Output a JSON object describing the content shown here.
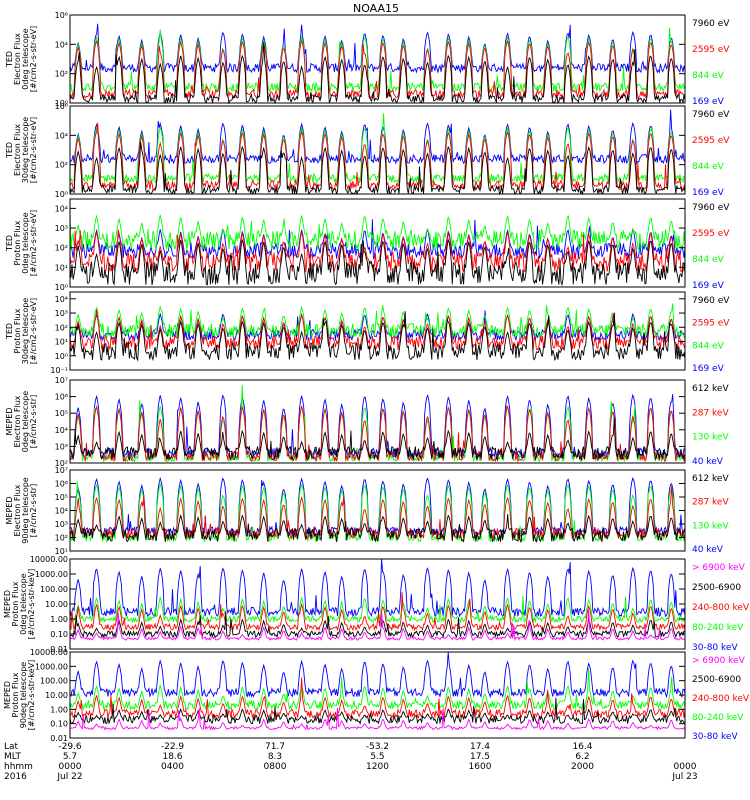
{
  "title": "NOAA15",
  "colors": {
    "blue": "#0000ff",
    "red": "#ff0000",
    "green": "#00ff00",
    "black": "#000000",
    "magenta": "#ff00ff"
  },
  "chart_data": [
    {
      "type": "line",
      "panel": 1,
      "ylabel": [
        "TED",
        "Electron Flux",
        "0deg telescope",
        "[#/cm2-s-str-eV]"
      ],
      "log": true,
      "ylim": [
        1,
        1000000
      ],
      "yticks": [
        {
          "v": 1,
          "label": "10⁰"
        },
        {
          "v": 100,
          "label": "10²"
        },
        {
          "v": 10000,
          "label": "10⁴"
        },
        {
          "v": 1000000,
          "label": "10⁶"
        }
      ],
      "legend": [
        {
          "text": "7960 eV",
          "color": "#000000"
        },
        {
          "text": "2595 eV",
          "color": "#ff0000"
        },
        {
          "text": "844 eV",
          "color": "#00ff00"
        },
        {
          "text": "169 eV",
          "color": "#0000ff"
        }
      ],
      "series": [
        {
          "name": "169 eV",
          "color": "#0000ff",
          "baseline": 250,
          "spread": 0.3,
          "peaks": 80000
        },
        {
          "name": "844 eV",
          "color": "#00ff00",
          "baseline": 12,
          "spread": 0.3,
          "peaks": 40000
        },
        {
          "name": "2595 eV",
          "color": "#ff0000",
          "baseline": 4,
          "spread": 0.3,
          "peaks": 20000
        },
        {
          "name": "7960 eV",
          "color": "#000000",
          "baseline": 2,
          "spread": 0.3,
          "peaks": 2000
        }
      ]
    },
    {
      "type": "line",
      "panel": 2,
      "ylabel": [
        "TED",
        "Electron Flux",
        "30deg telescope",
        "[#/cm2-s-str-eV]"
      ],
      "log": true,
      "ylim": [
        1,
        1000000
      ],
      "yticks": [
        {
          "v": 1,
          "label": "10⁰"
        },
        {
          "v": 100,
          "label": "10²"
        },
        {
          "v": 10000,
          "label": "10⁴"
        },
        {
          "v": 1000000,
          "label": "10⁶"
        }
      ],
      "legend": [
        {
          "text": "7960 eV",
          "color": "#000000"
        },
        {
          "text": "2595 eV",
          "color": "#ff0000"
        },
        {
          "text": "844 eV",
          "color": "#00ff00"
        },
        {
          "text": "169 eV",
          "color": "#0000ff"
        }
      ],
      "series": [
        {
          "name": "169 eV",
          "color": "#0000ff",
          "baseline": 250,
          "spread": 0.3,
          "peaks": 80000
        },
        {
          "name": "844 eV",
          "color": "#00ff00",
          "baseline": 12,
          "spread": 0.3,
          "peaks": 40000
        },
        {
          "name": "2595 eV",
          "color": "#ff0000",
          "baseline": 4,
          "spread": 0.3,
          "peaks": 20000
        },
        {
          "name": "7960 eV",
          "color": "#000000",
          "baseline": 2,
          "spread": 0.3,
          "peaks": 2000
        }
      ]
    },
    {
      "type": "line",
      "panel": 3,
      "ylabel": [
        "TED",
        "Proton Flux",
        "0deg telescope",
        "[#/cm2-s-str-eV]"
      ],
      "log": true,
      "ylim": [
        1,
        30000
      ],
      "yticks": [
        {
          "v": 1,
          "label": "10⁰"
        },
        {
          "v": 10,
          "label": "10¹"
        },
        {
          "v": 100,
          "label": "10²"
        },
        {
          "v": 1000,
          "label": "10³"
        },
        {
          "v": 10000,
          "label": "10⁴"
        }
      ],
      "legend": [
        {
          "text": "7960 eV",
          "color": "#000000"
        },
        {
          "text": "2595 eV",
          "color": "#ff0000"
        },
        {
          "text": "844 eV",
          "color": "#00ff00"
        },
        {
          "text": "169 eV",
          "color": "#0000ff"
        }
      ],
      "series": [
        {
          "name": "169 eV",
          "color": "#0000ff",
          "baseline": 70,
          "spread": 0.4,
          "peaks": 1000
        },
        {
          "name": "844 eV",
          "color": "#00ff00",
          "baseline": 250,
          "spread": 0.5,
          "peaks": 5000
        },
        {
          "name": "2595 eV",
          "color": "#ff0000",
          "baseline": 18,
          "spread": 0.5,
          "peaks": 700
        },
        {
          "name": "7960 eV",
          "color": "#000000",
          "baseline": 5,
          "spread": 0.6,
          "peaks": 300
        }
      ]
    },
    {
      "type": "line",
      "panel": 4,
      "ylabel": [
        "TED",
        "Proton Flux",
        "30deg telescope",
        "[#/cm2-s-str-eV]"
      ],
      "log": true,
      "ylim": [
        0.1,
        30000
      ],
      "yticks": [
        {
          "v": 0.1,
          "label": "10⁻¹"
        },
        {
          "v": 1,
          "label": "10⁰"
        },
        {
          "v": 10,
          "label": "10¹"
        },
        {
          "v": 100,
          "label": "10²"
        },
        {
          "v": 1000,
          "label": "10³"
        },
        {
          "v": 10000,
          "label": "10⁴"
        }
      ],
      "legend": [
        {
          "text": "7960 eV",
          "color": "#000000"
        },
        {
          "text": "2595 eV",
          "color": "#ff0000"
        },
        {
          "text": "844 eV",
          "color": "#00ff00"
        },
        {
          "text": "169 eV",
          "color": "#0000ff"
        }
      ],
      "series": [
        {
          "name": "169 eV",
          "color": "#0000ff",
          "baseline": 30,
          "spread": 0.4,
          "peaks": 1000
        },
        {
          "name": "844 eV",
          "color": "#00ff00",
          "baseline": 60,
          "spread": 0.5,
          "peaks": 3000
        },
        {
          "name": "2595 eV",
          "color": "#ff0000",
          "baseline": 8,
          "spread": 0.5,
          "peaks": 800
        },
        {
          "name": "7960 eV",
          "color": "#000000",
          "baseline": 2,
          "spread": 0.6,
          "peaks": 300
        }
      ]
    },
    {
      "type": "line",
      "panel": 5,
      "ylabel": [
        "MEPED",
        "Electron Flux",
        "0deg telescope",
        "[#/cm2-s-str]"
      ],
      "log": true,
      "ylim": [
        100,
        10000000
      ],
      "yticks": [
        {
          "v": 100,
          "label": "10²"
        },
        {
          "v": 1000,
          "label": "10³"
        },
        {
          "v": 10000,
          "label": "10⁴"
        },
        {
          "v": 100000,
          "label": "10⁵"
        },
        {
          "v": 1000000,
          "label": "10⁶"
        },
        {
          "v": 10000000,
          "label": "10⁷"
        }
      ],
      "legend": [
        {
          "text": "612 keV",
          "color": "#000000"
        },
        {
          "text": "287 keV",
          "color": "#ff0000"
        },
        {
          "text": "130 keV",
          "color": "#00ff00"
        },
        {
          "text": "40 keV",
          "color": "#0000ff"
        }
      ],
      "series": [
        {
          "name": "40 keV",
          "color": "#0000ff",
          "baseline": 400,
          "spread": 0.3,
          "peaks": 1500000
        },
        {
          "name": "130 keV",
          "color": "#00ff00",
          "baseline": 200,
          "spread": 0.2,
          "peaks": 300000
        },
        {
          "name": "287 keV",
          "color": "#ff0000",
          "baseline": 250,
          "spread": 0.3,
          "peaks": 300000
        },
        {
          "name": "612 keV",
          "color": "#000000",
          "baseline": 400,
          "spread": 0.4,
          "peaks": 10000
        }
      ]
    },
    {
      "type": "line",
      "panel": 6,
      "ylabel": [
        "MEPED",
        "Electron Flux",
        "90deg telescope",
        "[#/cm2-s-str]"
      ],
      "log": true,
      "ylim": [
        10,
        10000000
      ],
      "yticks": [
        {
          "v": 10,
          "label": "10¹"
        },
        {
          "v": 100,
          "label": "10²"
        },
        {
          "v": 1000,
          "label": "10³"
        },
        {
          "v": 10000,
          "label": "10⁴"
        },
        {
          "v": 100000,
          "label": "10⁵"
        },
        {
          "v": 1000000,
          "label": "10⁶"
        },
        {
          "v": 10000000,
          "label": "10⁷"
        }
      ],
      "legend": [
        {
          "text": "612 keV",
          "color": "#000000"
        },
        {
          "text": "287 keV",
          "color": "#ff0000"
        },
        {
          "text": "130 keV",
          "color": "#00ff00"
        },
        {
          "text": "40 keV",
          "color": "#0000ff"
        }
      ],
      "series": [
        {
          "name": "40 keV",
          "color": "#0000ff",
          "baseline": 300,
          "spread": 0.3,
          "peaks": 3000000
        },
        {
          "name": "130 keV",
          "color": "#00ff00",
          "baseline": 100,
          "spread": 0.3,
          "peaks": 1000000
        },
        {
          "name": "287 keV",
          "color": "#ff0000",
          "baseline": 200,
          "spread": 0.4,
          "peaks": 100000
        },
        {
          "name": "612 keV",
          "color": "#000000",
          "baseline": 150,
          "spread": 0.5,
          "peaks": 5000
        }
      ]
    },
    {
      "type": "line",
      "panel": 7,
      "ylabel": [
        "MEPED",
        "Proton Flux",
        "0deg telescope",
        "[#/cm2-s-str-keV]"
      ],
      "log": true,
      "ylim": [
        0.01,
        10000
      ],
      "yticks": [
        {
          "v": 0.01,
          "label": "0.01"
        },
        {
          "v": 0.1,
          "label": "0.10"
        },
        {
          "v": 1,
          "label": "1.00"
        },
        {
          "v": 10,
          "label": "10.00"
        },
        {
          "v": 100,
          "label": "100.00"
        },
        {
          "v": 1000,
          "label": "1000.00"
        },
        {
          "v": 10000,
          "label": "10000.00"
        }
      ],
      "legend": [
        {
          "text": "> 6900 keV",
          "color": "#ff00ff"
        },
        {
          "text": "2500-6900",
          "color": "#000000"
        },
        {
          "text": "240-800 keV",
          "color": "#ff0000"
        },
        {
          "text": "80-240 keV",
          "color": "#00ff00"
        },
        {
          "text": "30-80 keV",
          "color": "#0000ff"
        }
      ],
      "series": [
        {
          "name": "30-80 keV",
          "color": "#0000ff",
          "baseline": 3,
          "spread": 0.3,
          "peaks": 3000
        },
        {
          "name": "80-240 keV",
          "color": "#00ff00",
          "baseline": 1,
          "spread": 0.2,
          "peaks": 30
        },
        {
          "name": "240-800 keV",
          "color": "#ff0000",
          "baseline": 0.3,
          "spread": 0.2,
          "peaks": 10
        },
        {
          "name": "2500-6900",
          "color": "#000000",
          "baseline": 0.1,
          "spread": 0.2,
          "peaks": 1
        },
        {
          "name": "> 6900 keV",
          "color": "#ff00ff",
          "baseline": 0.05,
          "spread": 0.1,
          "peaks": 0.3
        }
      ]
    },
    {
      "type": "line",
      "panel": 8,
      "ylabel": [
        "MEPED",
        "Proton Flux",
        "90deg telescope",
        "[#/cm2-s-str-keV]"
      ],
      "log": true,
      "ylim": [
        0.01,
        10000
      ],
      "yticks": [
        {
          "v": 0.01,
          "label": "0.01"
        },
        {
          "v": 0.1,
          "label": "0.10"
        },
        {
          "v": 1,
          "label": "1.00"
        },
        {
          "v": 10,
          "label": "10.00"
        },
        {
          "v": 100,
          "label": "100.00"
        },
        {
          "v": 1000,
          "label": "1000.00"
        },
        {
          "v": 10000,
          "label": "10000.00"
        }
      ],
      "legend": [
        {
          "text": "> 6900 keV",
          "color": "#ff00ff"
        },
        {
          "text": "2500-6900",
          "color": "#000000"
        },
        {
          "text": "240-800 keV",
          "color": "#ff0000"
        },
        {
          "text": "80-240 keV",
          "color": "#00ff00"
        },
        {
          "text": "30-80 keV",
          "color": "#0000ff"
        }
      ],
      "series": [
        {
          "name": "30-80 keV",
          "color": "#0000ff",
          "baseline": 15,
          "spread": 0.3,
          "peaks": 3000
        },
        {
          "name": "80-240 keV",
          "color": "#00ff00",
          "baseline": 2,
          "spread": 0.3,
          "peaks": 50
        },
        {
          "name": "240-800 keV",
          "color": "#ff0000",
          "baseline": 0.5,
          "spread": 0.3,
          "peaks": 10
        },
        {
          "name": "2500-6900",
          "color": "#000000",
          "baseline": 0.2,
          "spread": 0.3,
          "peaks": 1
        },
        {
          "name": "> 6900 keV",
          "color": "#ff00ff",
          "baseline": 0.05,
          "spread": 0.1,
          "peaks": 0.2
        }
      ]
    }
  ],
  "time_axis": {
    "row_labels": [
      "Lat",
      "MLT",
      "hhmm",
      "2016"
    ],
    "columns": [
      {
        "lat": "-29.6",
        "mlt": "5.7",
        "hhmm": "0000",
        "date": "Jul 22"
      },
      {
        "lat": "-22.9",
        "mlt": "18.6",
        "hhmm": "0400",
        "date": ""
      },
      {
        "lat": "71.7",
        "mlt": "8.3",
        "hhmm": "0800",
        "date": ""
      },
      {
        "lat": "-53.2",
        "mlt": "5.5",
        "hhmm": "1200",
        "date": ""
      },
      {
        "lat": "17.4",
        "mlt": "17.5",
        "hhmm": "1600",
        "date": ""
      },
      {
        "lat": "16.4",
        "mlt": "6.2",
        "hhmm": "2000",
        "date": ""
      },
      {
        "lat": "",
        "mlt": "",
        "hhmm": "0000",
        "date": "Jul 23"
      }
    ]
  }
}
